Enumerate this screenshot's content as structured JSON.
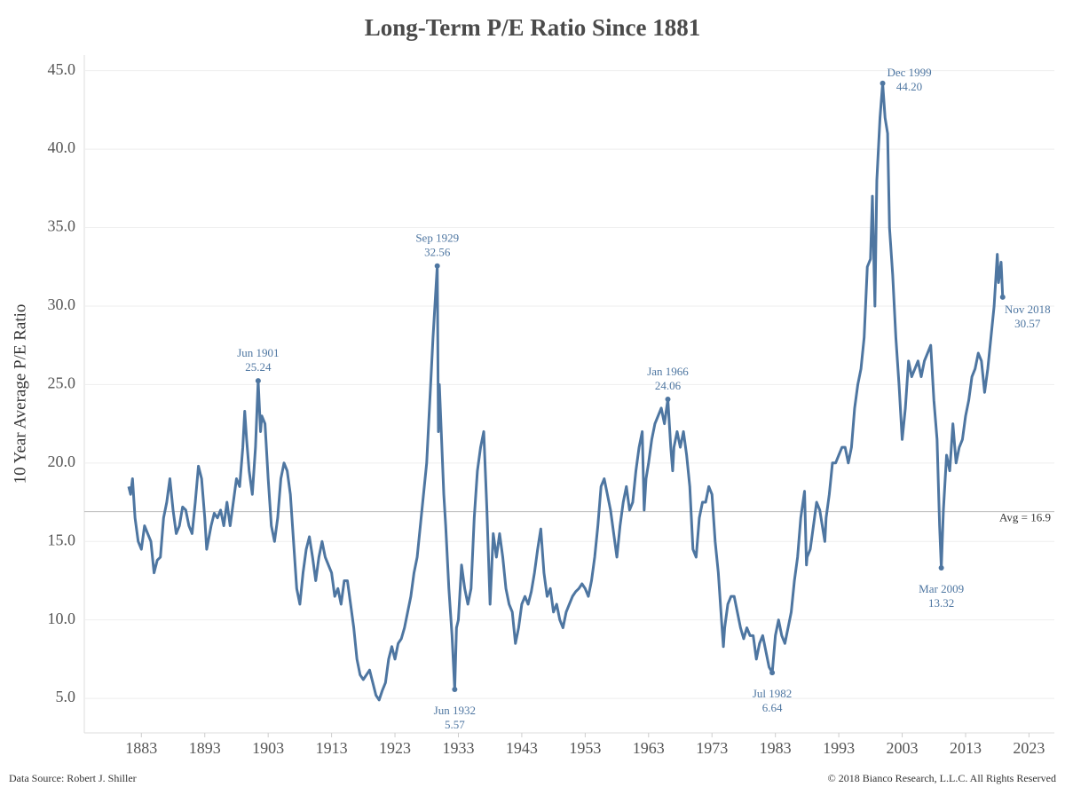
{
  "chart_data": {
    "type": "line",
    "title": "Long-Term P/E Ratio Since 1881",
    "y_label": "10 Year Average P/E Ratio",
    "source": "Data Source: Robert J. Shiller",
    "copyright": "© 2018 Bianco Research, L.L.C. All Rights Reserved",
    "color": "#4e76a1",
    "grid": true,
    "xlim": [
      1874,
      2027
    ],
    "xticks": [
      1883,
      1893,
      1903,
      1913,
      1923,
      1933,
      1943,
      1953,
      1963,
      1973,
      1983,
      1993,
      2003,
      2013,
      2023
    ],
    "ylim": [
      2.8,
      46
    ],
    "yticks": [
      {
        "value": 5,
        "label": "5.0"
      },
      {
        "value": 10,
        "label": "10.0"
      },
      {
        "value": 15,
        "label": "15.0"
      },
      {
        "value": 20,
        "label": "20.0"
      },
      {
        "value": 25,
        "label": "25.0"
      },
      {
        "value": 30,
        "label": "30.0"
      },
      {
        "value": 35,
        "label": "35.0"
      },
      {
        "value": 40,
        "label": "40.0"
      },
      {
        "value": 45,
        "label": "45.0"
      }
    ],
    "avg": {
      "value": 16.9,
      "label": "Avg = 16.9"
    },
    "x": [
      1881,
      1881.3,
      1881.6,
      1882,
      1882.5,
      1883,
      1883.5,
      1884,
      1884.5,
      1885,
      1885.5,
      1886,
      1886.5,
      1887,
      1887.5,
      1888,
      1888.5,
      1889,
      1889.5,
      1890,
      1890.5,
      1891,
      1891.5,
      1892,
      1892.5,
      1893,
      1893.3,
      1894,
      1894.5,
      1895,
      1895.5,
      1896,
      1896.5,
      1897,
      1897.5,
      1898,
      1898.5,
      1899,
      1899.3,
      1899.6,
      1900,
      1900.5,
      1901,
      1901.42,
      1901.8,
      1902,
      1902.5,
      1903,
      1903.5,
      1904,
      1904.5,
      1905,
      1905.5,
      1906,
      1906.5,
      1907,
      1907.5,
      1908,
      1908.5,
      1909,
      1909.5,
      1910,
      1910.5,
      1911,
      1911.5,
      1912,
      1912.5,
      1913,
      1913.5,
      1914,
      1914.5,
      1915,
      1915.5,
      1916,
      1916.5,
      1917,
      1917.5,
      1918,
      1918.5,
      1919,
      1919.5,
      1920,
      1920.5,
      1921,
      1921.5,
      1922,
      1922.5,
      1923,
      1923.5,
      1924,
      1924.5,
      1925,
      1925.5,
      1926,
      1926.5,
      1927,
      1927.5,
      1928,
      1928.5,
      1929,
      1929.67,
      1929.85,
      1930,
      1930.3,
      1930.7,
      1931,
      1931.5,
      1932,
      1932.42,
      1932.7,
      1933,
      1933.5,
      1934,
      1934.5,
      1935,
      1935.5,
      1936,
      1936.5,
      1937,
      1937.5,
      1938,
      1938.5,
      1939,
      1939.5,
      1940,
      1940.5,
      1941,
      1941.5,
      1942,
      1942.5,
      1943,
      1943.5,
      1944,
      1944.5,
      1945,
      1945.5,
      1946,
      1946.5,
      1947,
      1947.5,
      1948,
      1948.5,
      1949,
      1949.5,
      1950,
      1950.5,
      1951,
      1951.5,
      1952,
      1952.5,
      1953,
      1953.5,
      1954,
      1954.5,
      1955,
      1955.5,
      1956,
      1956.5,
      1957,
      1957.5,
      1958,
      1958.5,
      1959,
      1959.5,
      1960,
      1960.5,
      1961,
      1961.5,
      1962,
      1962.3,
      1962.6,
      1963,
      1963.5,
      1964,
      1964.5,
      1965,
      1965.5,
      1966.04,
      1966.5,
      1966.8,
      1967,
      1967.5,
      1968,
      1968.5,
      1969,
      1969.5,
      1970,
      1970.5,
      1971,
      1971.5,
      1972,
      1972.5,
      1973,
      1973.5,
      1974,
      1974.5,
      1974.8,
      1975,
      1975.5,
      1976,
      1976.5,
      1977,
      1977.5,
      1978,
      1978.5,
      1979,
      1979.5,
      1980,
      1980.5,
      1981,
      1981.5,
      1982,
      1982.5,
      1983,
      1983.5,
      1984,
      1984.5,
      1985,
      1985.5,
      1986,
      1986.5,
      1987,
      1987.6,
      1987.9,
      1988,
      1988.5,
      1989,
      1989.5,
      1990,
      1990.8,
      1991,
      1991.5,
      1992,
      1992.5,
      1993,
      1993.5,
      1994,
      1994.5,
      1995,
      1995.5,
      1996,
      1996.5,
      1997,
      1997.5,
      1998,
      1998.3,
      1998.7,
      1999,
      1999.5,
      1999.92,
      2000.3,
      2000.7,
      2001,
      2001.5,
      2002,
      2002.5,
      2003,
      2003.5,
      2004,
      2004.5,
      2005,
      2005.5,
      2006,
      2006.5,
      2007,
      2007.5,
      2008,
      2008.5,
      2008.9,
      2009.17,
      2009.5,
      2010,
      2010.5,
      2011,
      2011.5,
      2012,
      2012.5,
      2013,
      2013.5,
      2014,
      2014.5,
      2015,
      2015.5,
      2016,
      2016.5,
      2017,
      2017.5,
      2018,
      2018.2,
      2018.6,
      2018.85
    ],
    "values": [
      18.5,
      18,
      19,
      16.5,
      15,
      14.5,
      16,
      15.5,
      15,
      13,
      13.8,
      14,
      16.5,
      17.5,
      19,
      17,
      15.5,
      16,
      17.2,
      17,
      16,
      15.5,
      17.5,
      19.8,
      19,
      16.5,
      14.5,
      16,
      16.8,
      16.5,
      17,
      16,
      17.5,
      16,
      17.5,
      19,
      18.5,
      21,
      23.3,
      21.5,
      19.5,
      18,
      21,
      25.24,
      22,
      23,
      22.5,
      19,
      16,
      15,
      16.5,
      19,
      20,
      19.5,
      18,
      15,
      12,
      11,
      13,
      14.5,
      15.3,
      14,
      12.5,
      14,
      15,
      14,
      13.5,
      13,
      11.5,
      12,
      11,
      12.5,
      12.5,
      11,
      9.5,
      7.5,
      6.5,
      6.2,
      6.5,
      6.8,
      6,
      5.2,
      4.9,
      5.5,
      6,
      7.5,
      8.3,
      7.5,
      8.5,
      8.8,
      9.5,
      10.5,
      11.5,
      13,
      14,
      16,
      18,
      20,
      24,
      28,
      32.56,
      22,
      25,
      22,
      18,
      16,
      12,
      9,
      5.57,
      9.5,
      10,
      13.5,
      12,
      11,
      12,
      16.5,
      19.5,
      21,
      22,
      17,
      11,
      15.5,
      14,
      15.5,
      14,
      12,
      11,
      10.5,
      8.5,
      9.5,
      11,
      11.5,
      11,
      11.8,
      13,
      14.5,
      15.8,
      13,
      11.5,
      12,
      10.5,
      11,
      10,
      9.5,
      10.5,
      11,
      11.5,
      11.8,
      12,
      12.3,
      12,
      11.5,
      12.5,
      14,
      16,
      18.5,
      19,
      18,
      17,
      15.5,
      14,
      16,
      17.5,
      18.5,
      17,
      17.5,
      19.5,
      21,
      22,
      17,
      19,
      20,
      21.5,
      22.5,
      23,
      23.5,
      22.5,
      24.06,
      21,
      19.5,
      21,
      22,
      21,
      22,
      20.5,
      18.5,
      14.5,
      14,
      16.5,
      17.5,
      17.5,
      18.5,
      18,
      15,
      13,
      10,
      8.3,
      9.5,
      11,
      11.5,
      11.5,
      10.5,
      9.5,
      8.8,
      9.5,
      9,
      9,
      7.5,
      8.5,
      9,
      8,
      7,
      6.64,
      9,
      10,
      9,
      8.5,
      9.5,
      10.5,
      12.5,
      14,
      16.5,
      18.2,
      13.5,
      14,
      14.5,
      16,
      17.5,
      17,
      15,
      16.5,
      18,
      20,
      20,
      20.5,
      21,
      21,
      20,
      21,
      23.5,
      25,
      26,
      28,
      32.5,
      33,
      37,
      30,
      38,
      42,
      44.2,
      42,
      41,
      35,
      32,
      28,
      25,
      21.5,
      23.5,
      26.5,
      25.5,
      26,
      26.5,
      25.5,
      26.5,
      27,
      27.5,
      24,
      21.5,
      16,
      13.32,
      17,
      20.5,
      19.5,
      22.5,
      20,
      21,
      21.5,
      23,
      24,
      25.5,
      26,
      27,
      26.5,
      24.5,
      26,
      28,
      30,
      33.3,
      31.5,
      32.8,
      30.57
    ],
    "annotations": [
      {
        "date": "Jun 1901",
        "x": 1901.42,
        "value": 25.24,
        "position": "above"
      },
      {
        "date": "Sep 1929",
        "x": 1929.67,
        "value": 32.56,
        "position": "above"
      },
      {
        "date": "Jun 1932",
        "x": 1932.42,
        "value": 5.57,
        "position": "below"
      },
      {
        "date": "Jan 1966",
        "x": 1966.04,
        "value": 24.06,
        "position": "above"
      },
      {
        "date": "Jul 1982",
        "x": 1982.5,
        "value": 6.64,
        "position": "below"
      },
      {
        "date": "Dec 1999",
        "x": 1999.92,
        "value": 44.2,
        "value_label": "44.20",
        "position": "above-right"
      },
      {
        "date": "Mar 2009",
        "x": 2009.17,
        "value": 13.32,
        "position": "below"
      },
      {
        "date": "Nov 2018",
        "x": 2018.85,
        "value": 30.57,
        "position": "right"
      }
    ]
  }
}
